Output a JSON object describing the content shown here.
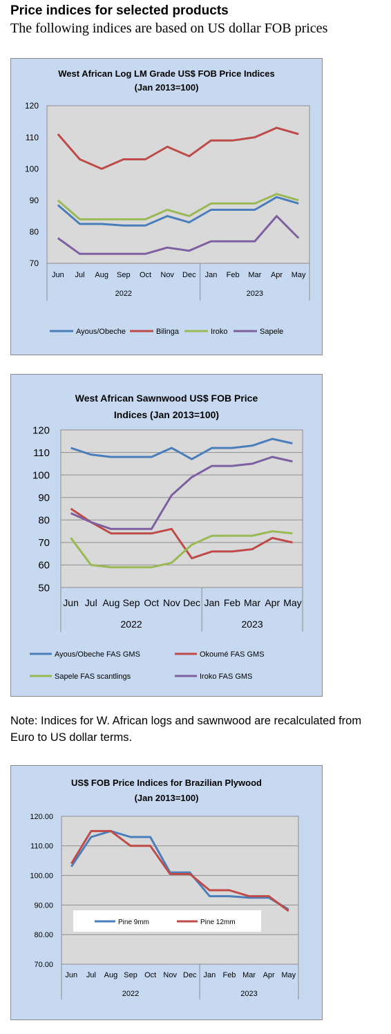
{
  "page": {
    "heading": "Price indices for selected products",
    "subheading": "The following indices are based on US dollar FOB prices",
    "note": "Note: Indices for W. African logs and sawnwood are recalculated from Euro to US dollar terms."
  },
  "colors": {
    "blue": "#4a7ebb",
    "red": "#be4b48",
    "green": "#98b954",
    "purple": "#7d60a0"
  },
  "chart_data": [
    {
      "type": "line",
      "title": [
        "West African Log LM Grade US$ FOB Price Indices",
        "(Jan 2013=100)"
      ],
      "categories": [
        "Jun",
        "Jul",
        "Aug",
        "Sep",
        "Oct",
        "Nov",
        "Dec",
        "Jan",
        "Feb",
        "Mar",
        "Apr",
        "May"
      ],
      "years": [
        {
          "label": "2022",
          "from": 0,
          "to": 6
        },
        {
          "label": "2023",
          "from": 7,
          "to": 11
        }
      ],
      "ylim": [
        70,
        120
      ],
      "yticks": [
        "70",
        "80",
        "90",
        "100",
        "110",
        "120"
      ],
      "grid": false,
      "legend": "bottom",
      "series": [
        {
          "name": "Ayous/Obeche",
          "color": "#4a7ebb",
          "values": [
            88.5,
            82.5,
            82.5,
            82,
            82,
            85,
            83,
            87,
            87,
            87,
            91,
            89
          ]
        },
        {
          "name": "Bilinga",
          "color": "#be4b48",
          "values": [
            111,
            103,
            100,
            103,
            103,
            107,
            104,
            109,
            109,
            110,
            113,
            111
          ]
        },
        {
          "name": "Iroko",
          "color": "#98b954",
          "values": [
            90,
            84,
            84,
            84,
            84,
            87,
            85,
            89,
            89,
            89,
            92,
            90
          ]
        },
        {
          "name": "Sapele",
          "color": "#7d60a0",
          "values": [
            78,
            73,
            73,
            73,
            73,
            75,
            74,
            77,
            77,
            77,
            85,
            78
          ]
        }
      ]
    },
    {
      "type": "line",
      "title": [
        "West African Sawnwood US$ FOB Price",
        "Indices (Jan 2013=100)"
      ],
      "categories": [
        "Jun",
        "Jul",
        "Aug",
        "Sep",
        "Oct",
        "Nov",
        "Dec",
        "Jan",
        "Feb",
        "Mar",
        "Apr",
        "May"
      ],
      "years": [
        {
          "label": "2022",
          "from": 0,
          "to": 6
        },
        {
          "label": "2023",
          "from": 7,
          "to": 11
        }
      ],
      "ylim": [
        50,
        120
      ],
      "yticks": [
        "50",
        "60",
        "70",
        "80",
        "90",
        "100",
        "110",
        "120"
      ],
      "grid": true,
      "legend": "bottom",
      "series": [
        {
          "name": "Ayous/Obeche  FAS GMS",
          "color": "#4a7ebb",
          "values": [
            112,
            109,
            108,
            108,
            108,
            112,
            107,
            112,
            112,
            113,
            116,
            114
          ]
        },
        {
          "name": "Okoumé  FAS GMS",
          "color": "#be4b48",
          "values": [
            85,
            79,
            74,
            74,
            74,
            76,
            63,
            66,
            66,
            67,
            72,
            70
          ]
        },
        {
          "name": "Sapele  FAS scantlings",
          "color": "#98b954",
          "values": [
            72,
            60,
            59,
            59,
            59,
            61,
            69,
            73,
            73,
            73,
            75,
            74
          ]
        },
        {
          "name": "Iroko  FAS GMS",
          "color": "#7d60a0",
          "values": [
            83,
            79,
            76,
            76,
            76,
            91,
            99,
            104,
            104,
            105,
            108,
            106
          ]
        }
      ]
    },
    {
      "type": "line",
      "title": [
        "US$ FOB Price Indices for Brazilian  Plywood",
        "(Jan 2013=100)"
      ],
      "categories": [
        "Jun",
        "Jul",
        "Aug",
        "Sep",
        "Oct",
        "Nov",
        "Dec",
        "Jan",
        "Feb",
        "Mar",
        "Apr",
        "May"
      ],
      "years": [
        {
          "label": "2022",
          "from": 0,
          "to": 6
        },
        {
          "label": "2023",
          "from": 7,
          "to": 11
        }
      ],
      "ylim": [
        70,
        120
      ],
      "yticks": [
        "70.00",
        "80.00",
        "90.00",
        "100.00",
        "110.00",
        "120.00"
      ],
      "grid": true,
      "legend": "inside-bottom",
      "series": [
        {
          "name": "Pine 9mm",
          "color": "#4a7ebb",
          "values": [
            103,
            113,
            115,
            113,
            113,
            101,
            101,
            93,
            93,
            92.5,
            92.5,
            88.5
          ]
        },
        {
          "name": "Pine 12mm",
          "color": "#be4b48",
          "values": [
            104,
            115,
            115,
            110,
            110,
            100.5,
            100.5,
            95,
            95,
            93,
            93,
            88
          ]
        }
      ]
    }
  ]
}
